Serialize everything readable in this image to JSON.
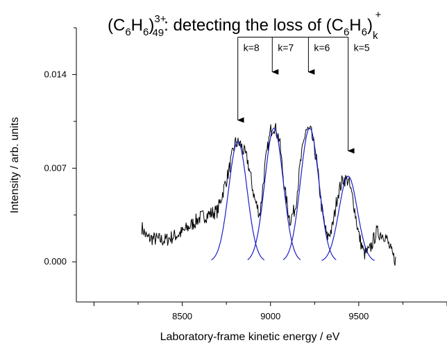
{
  "chart_data": {
    "type": "line",
    "title": {
      "paren_open": "(C",
      "c_sub": "6",
      "h": "H",
      "h_sub": "6",
      "paren_close": ")",
      "charge": "3+",
      "size": "49",
      "rest": ": detecting the loss of (C",
      "c_sub2": "6",
      "h2": "H",
      "h_sub2": "6",
      "paren_close2": ")",
      "k_sub": "k",
      "plus": "+"
    },
    "xlabel": "Laboratory-frame kinetic energy / eV",
    "ylabel": "Intensity / arb. units",
    "xlim": [
      7900,
      10000
    ],
    "ylim": [
      -0.003,
      0.0175
    ],
    "xticks": [
      8500,
      9000,
      9500
    ],
    "xtick_labels": [
      "8500",
      "9000",
      "9500"
    ],
    "yticks": [
      0.0,
      0.007,
      0.014
    ],
    "ytick_labels": [
      "0.000",
      "0.007",
      "0.014"
    ],
    "colors": {
      "measured": "#000000",
      "fit": "#1c1cc8",
      "axis": "#000000"
    },
    "measured_envelope": {
      "x": [
        8270,
        8300,
        8400,
        8500,
        8600,
        8700,
        8760,
        8800,
        8830,
        8870,
        8910,
        8940,
        8970,
        9000,
        9020,
        9050,
        9080,
        9110,
        9140,
        9170,
        9200,
        9230,
        9260,
        9290,
        9320,
        9350,
        9380,
        9410,
        9440,
        9470,
        9500,
        9530,
        9560,
        9600,
        9650,
        9690,
        9710
      ],
      "y": [
        0.0026,
        0.0018,
        0.0016,
        0.0022,
        0.0033,
        0.0038,
        0.0066,
        0.0089,
        0.0088,
        0.0076,
        0.0047,
        0.0035,
        0.0073,
        0.0098,
        0.0102,
        0.0092,
        0.0054,
        0.0031,
        0.004,
        0.0074,
        0.0099,
        0.0097,
        0.0077,
        0.004,
        0.0018,
        0.0025,
        0.005,
        0.0062,
        0.0061,
        0.0045,
        0.002,
        0.0006,
        0.0008,
        0.0022,
        0.002,
        0.0005,
        0.0001
      ]
    },
    "fit_peaks": [
      {
        "center": 8815,
        "amplitude": 0.009,
        "sigma": 52
      },
      {
        "center": 9020,
        "amplitude": 0.01,
        "sigma": 52
      },
      {
        "center": 9222,
        "amplitude": 0.01,
        "sigma": 52
      },
      {
        "center": 9440,
        "amplitude": 0.0064,
        "sigma": 52
      }
    ],
    "fit_range_halfwidth": 150,
    "annotations": [
      {
        "label": "k=8",
        "x": 8815,
        "y_tip": 0.0106
      },
      {
        "label": "k=7",
        "x": 9010,
        "y_tip": 0.0142
      },
      {
        "label": "k=6",
        "x": 9215,
        "y_tip": 0.0142
      },
      {
        "label": "k=5",
        "x": 9440,
        "y_tip": 0.0083
      }
    ],
    "annotation_bracket_y": 0.0168,
    "grid": false,
    "legend": "none"
  }
}
